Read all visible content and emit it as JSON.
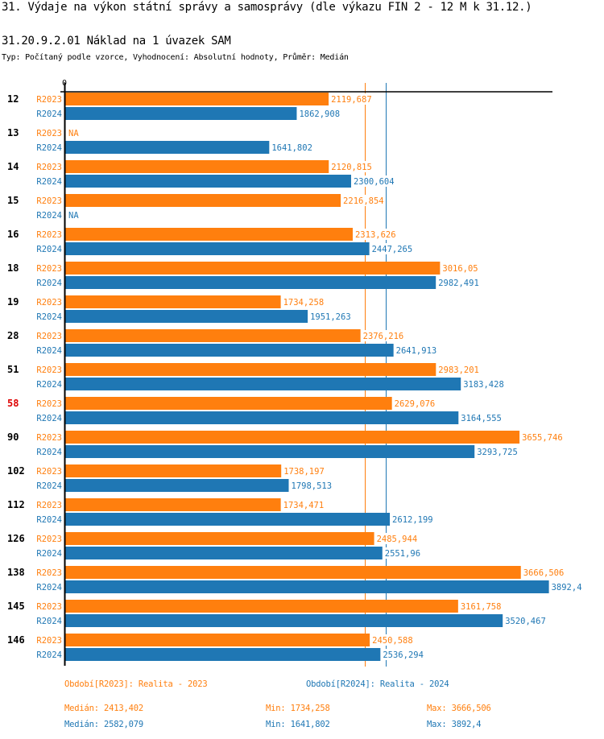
{
  "header": {
    "title": "31. Výdaje na výkon státní správy a samosprávy (dle výkazu FIN 2 - 12 M k 31.12.)",
    "subtitle": "31.20.9.2.01 Náklad na 1 úvazek SAM",
    "meta": "Typ: Počítaný podle vzorce, Vyhodnocení: Absolutní hodnoty, Průměr: Medián"
  },
  "colors": {
    "R2023": "#ff7f0e",
    "R2024": "#1f77b4",
    "highlight": "#dd0000",
    "axis": "#000000"
  },
  "chart_data": {
    "type": "bar",
    "orientation": "horizontal",
    "title": "31.20.9.2.01 Náklad na 1 úvazek SAM",
    "xlabel": "",
    "ylabel": "",
    "x_tick_labels": [
      "0"
    ],
    "xlim": [
      0,
      3892.4
    ],
    "grid": false,
    "categories": [
      "12",
      "13",
      "14",
      "15",
      "16",
      "18",
      "19",
      "28",
      "51",
      "58",
      "90",
      "102",
      "112",
      "126",
      "138",
      "145",
      "146"
    ],
    "highlighted_category": "58",
    "series": [
      {
        "name": "R2023",
        "values": [
          2119.687,
          null,
          2120.815,
          2216.854,
          2313.626,
          3016.05,
          1734.258,
          2376.216,
          2983.201,
          2629.076,
          3655.746,
          1738.197,
          1734.471,
          2485.944,
          3666.506,
          3161.758,
          2450.588
        ],
        "labels": [
          "2119,687",
          "NA",
          "2120,815",
          "2216,854",
          "2313,626",
          "3016,05",
          "1734,258",
          "2376,216",
          "2983,201",
          "2629,076",
          "3655,746",
          "1738,197",
          "1734,471",
          "2485,944",
          "3666,506",
          "3161,758",
          "2450,588"
        ]
      },
      {
        "name": "R2024",
        "values": [
          1862.908,
          1641.802,
          2300.604,
          null,
          2447.265,
          2982.491,
          1951.263,
          2641.913,
          3183.428,
          3164.555,
          3293.725,
          1798.513,
          2612.199,
          2551.96,
          3892.4,
          3520.467,
          2536.294
        ],
        "labels": [
          "1862,908",
          "1641,802",
          "2300,604",
          "NA",
          "2447,265",
          "2982,491",
          "1951,263",
          "2641,913",
          "3183,428",
          "3164,555",
          "3293,725",
          "1798,513",
          "2612,199",
          "2551,96",
          "3892,4",
          "3520,467",
          "2536,294"
        ]
      }
    ],
    "reference_lines": [
      {
        "series": "R2023",
        "type": "median",
        "value": 2413.402
      },
      {
        "series": "R2024",
        "type": "median",
        "value": 2582.079
      }
    ],
    "legend": [
      {
        "series": "R2023",
        "text": "Období[R2023]: Realita - 2023"
      },
      {
        "series": "R2024",
        "text": "Období[R2024]: Realita - 2024"
      }
    ],
    "legend_position": "bottom"
  },
  "stats": {
    "R2023": {
      "median": "Medián: 2413,402",
      "min": "Min: 1734,258",
      "max": "Max: 3666,506"
    },
    "R2024": {
      "median": "Medián: 2582,079",
      "min": "Min: 1641,802",
      "max": "Max: 3892,4"
    }
  }
}
